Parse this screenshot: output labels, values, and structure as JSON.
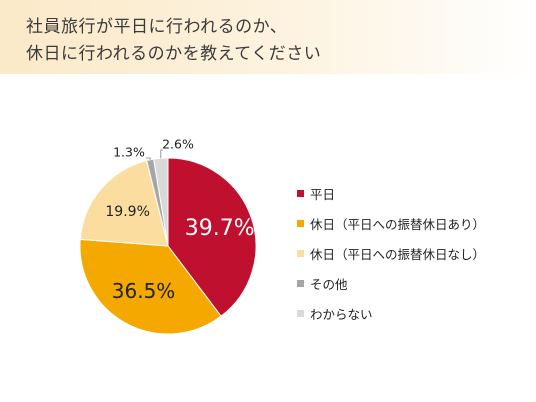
{
  "title": {
    "line1": "社員旅行が平日に行われるのか、",
    "line2": "休日に行われるのかを教えてください"
  },
  "chart_data": {
    "type": "pie",
    "title": "社員旅行が平日に行われるのか、休日に行われるのかを教えてください",
    "categories": [
      "平日",
      "休日（平日への振替休日あり）",
      "休日（平日への振替休日なし）",
      "その他",
      "わからない"
    ],
    "values": [
      39.7,
      36.5,
      19.9,
      1.3,
      2.6
    ],
    "labels": [
      "39.7%",
      "36.5%",
      "19.9%",
      "1.3%",
      "2.6%"
    ],
    "colors": [
      "#c0102f",
      "#f5a800",
      "#fbdda0",
      "#a6a6a6",
      "#d9d9d9"
    ],
    "legend_position": "right",
    "start_angle": "12 o'clock, clockwise"
  }
}
